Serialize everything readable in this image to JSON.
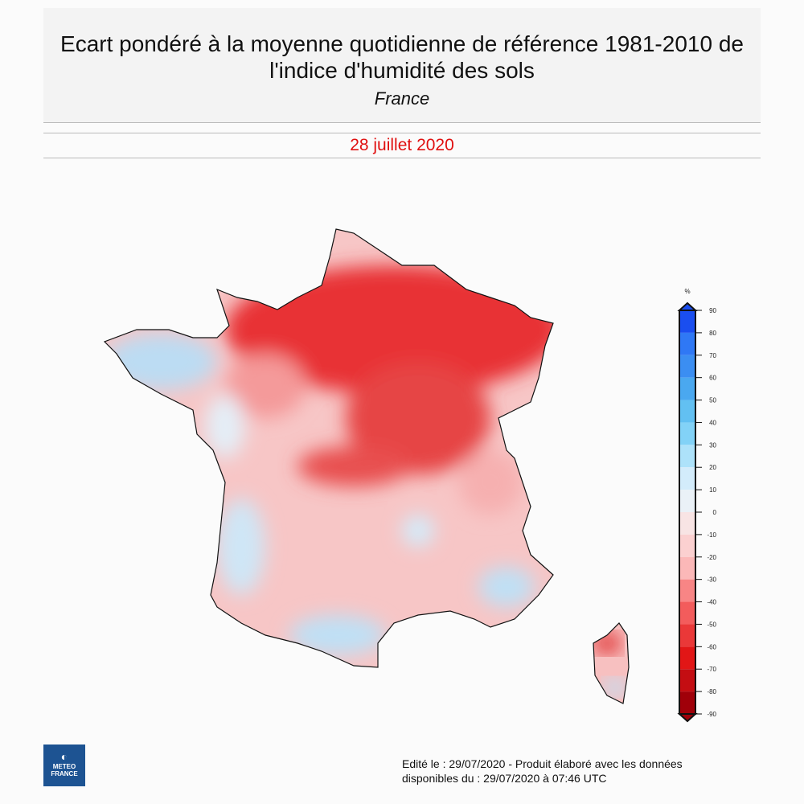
{
  "header": {
    "title_line1": "Ecart pondéré à la moyenne quotidienne de référence 1981-2010 de",
    "title_line2": "l'indice d'humidité des sols",
    "subtitle": "France"
  },
  "date": "28 juillet 2020",
  "colorbar": {
    "unit": "%",
    "ticks": [
      "90",
      "80",
      "70",
      "60",
      "50",
      "40",
      "30",
      "20",
      "10",
      "0",
      "-10",
      "-20",
      "-30",
      "-40",
      "-50",
      "-60",
      "-70",
      "-80",
      "-90"
    ],
    "colors": [
      "#1a4ef0",
      "#2f78f5",
      "#3b8ef2",
      "#4aa8f0",
      "#62c0f2",
      "#82d2f7",
      "#ade2fa",
      "#d3ecfb",
      "#eaf1f7",
      "#f8e4e4",
      "#fbd0d0",
      "#fbb8b8",
      "#f88585",
      "#f35c5c",
      "#ea3838",
      "#e21616",
      "#c40d12",
      "#a00009"
    ]
  },
  "map": {
    "region": "France"
  },
  "logo": {
    "line1": "METEO",
    "line2": "FRANCE"
  },
  "footer": {
    "line1": "Edité le : 29/07/2020 - Produit élaboré avec les données",
    "line2": "disponibles du : 29/07/2020 à 07:46 UTC"
  }
}
